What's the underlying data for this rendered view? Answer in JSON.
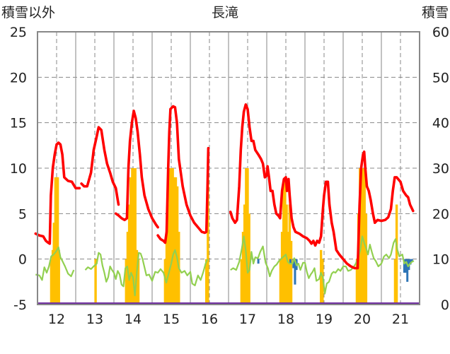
{
  "chart_data": {
    "type": "line",
    "title": "長滝",
    "left_axis_label": "積雪以外",
    "right_axis_label": "積雪",
    "left_ylim": [
      -5,
      25
    ],
    "left_ticks": [
      "25",
      "20",
      "15",
      "10",
      "5",
      "0",
      "-5"
    ],
    "right_ylim": [
      0,
      60
    ],
    "right_ticks": [
      "60",
      "50",
      "40",
      "30",
      "20",
      "10",
      "0"
    ],
    "x_tick_labels": [
      "12",
      "13",
      "14",
      "15",
      "16",
      "17",
      "18",
      "19",
      "20",
      "21"
    ],
    "grid": true,
    "colors": {
      "red_series": "#ff0000",
      "green_series": "#92d050",
      "orange_bars": "#ffc000",
      "blue_bars": "#2e75b6",
      "purple_baseline": "#7030a0",
      "grid": "#888888"
    },
    "red_series_points": [
      [
        11.45,
        2.8
      ],
      [
        11.55,
        2.6
      ],
      [
        11.65,
        2.5
      ],
      [
        11.72,
        2.0
      ],
      [
        11.78,
        1.8
      ],
      [
        11.82,
        1.7
      ],
      [
        11.85,
        7.0
      ],
      [
        11.9,
        10.0
      ],
      [
        11.95,
        11.5
      ],
      [
        12.0,
        12.6
      ],
      [
        12.05,
        12.8
      ],
      [
        12.1,
        12.6
      ],
      [
        12.15,
        11.5
      ],
      [
        12.2,
        9.0
      ],
      [
        12.3,
        8.6
      ],
      [
        12.4,
        8.5
      ],
      [
        12.5,
        7.8
      ],
      [
        12.6,
        7.8
      ],
      [
        null,
        null
      ],
      [
        12.65,
        8.3
      ],
      [
        12.72,
        8.0
      ],
      [
        12.8,
        8.0
      ],
      [
        12.9,
        9.5
      ],
      [
        12.97,
        12.0
      ],
      [
        13.05,
        13.5
      ],
      [
        13.1,
        14.5
      ],
      [
        13.17,
        14.2
      ],
      [
        13.25,
        12.0
      ],
      [
        13.32,
        10.5
      ],
      [
        13.4,
        9.5
      ],
      [
        13.47,
        8.5
      ],
      [
        13.55,
        7.8
      ],
      [
        13.6,
        6.5
      ],
      [
        13.62,
        6.0
      ],
      [
        null,
        null
      ],
      [
        13.55,
        5.0
      ],
      [
        13.62,
        4.8
      ],
      [
        13.7,
        4.5
      ],
      [
        13.78,
        4.3
      ],
      [
        13.84,
        4.5
      ],
      [
        13.88,
        10.0
      ],
      [
        13.92,
        13.0
      ],
      [
        13.97,
        15.0
      ],
      [
        14.02,
        16.3
      ],
      [
        14.07,
        15.5
      ],
      [
        14.12,
        14.0
      ],
      [
        14.18,
        11.5
      ],
      [
        14.23,
        9.0
      ],
      [
        14.3,
        7.0
      ],
      [
        14.4,
        5.5
      ],
      [
        14.5,
        4.5
      ],
      [
        14.6,
        3.8
      ],
      [
        14.65,
        3.5
      ],
      [
        null,
        null
      ],
      [
        14.65,
        2.6
      ],
      [
        14.72,
        2.2
      ],
      [
        14.8,
        2.0
      ],
      [
        14.84,
        1.8
      ],
      [
        14.88,
        3.0
      ],
      [
        14.92,
        10.0
      ],
      [
        14.95,
        14.0
      ],
      [
        14.98,
        16.5
      ],
      [
        15.05,
        16.8
      ],
      [
        15.1,
        16.7
      ],
      [
        15.15,
        15.0
      ],
      [
        15.2,
        11.0
      ],
      [
        15.3,
        8.0
      ],
      [
        15.4,
        6.0
      ],
      [
        15.5,
        4.8
      ],
      [
        15.6,
        4.0
      ],
      [
        15.7,
        3.5
      ],
      [
        15.8,
        3.0
      ],
      [
        15.88,
        2.9
      ],
      [
        15.92,
        3.0
      ],
      [
        15.95,
        8.0
      ],
      [
        15.97,
        12.2
      ],
      [
        null,
        null
      ],
      [
        16.55,
        5.2
      ],
      [
        16.6,
        4.5
      ],
      [
        16.67,
        4.0
      ],
      [
        16.72,
        4.3
      ],
      [
        16.78,
        8.0
      ],
      [
        16.82,
        12.0
      ],
      [
        16.86,
        14.5
      ],
      [
        16.9,
        16.2
      ],
      [
        16.95,
        17.0
      ],
      [
        17.0,
        16.5
      ],
      [
        17.05,
        14.5
      ],
      [
        17.1,
        13.0
      ],
      [
        17.15,
        13.0
      ],
      [
        17.2,
        12.0
      ],
      [
        17.28,
        11.5
      ],
      [
        17.35,
        11.0
      ],
      [
        17.4,
        10.5
      ],
      [
        17.45,
        9.0
      ],
      [
        17.5,
        9.2
      ],
      [
        17.52,
        10.2
      ],
      [
        17.56,
        9.0
      ],
      [
        17.6,
        7.5
      ],
      [
        17.65,
        7.5
      ],
      [
        17.7,
        6.0
      ],
      [
        17.75,
        5.0
      ],
      [
        17.8,
        4.8
      ],
      [
        17.85,
        4.5
      ],
      [
        17.9,
        7.5
      ],
      [
        17.95,
        8.8
      ],
      [
        18.0,
        9.0
      ],
      [
        18.03,
        7.5
      ],
      [
        18.07,
        8.8
      ],
      [
        18.1,
        7.0
      ],
      [
        18.15,
        4.5
      ],
      [
        18.2,
        3.5
      ],
      [
        18.25,
        3.0
      ],
      [
        18.35,
        2.8
      ],
      [
        18.45,
        2.5
      ],
      [
        18.55,
        2.3
      ],
      [
        18.62,
        2.0
      ],
      [
        18.67,
        1.7
      ],
      [
        18.72,
        2.0
      ],
      [
        18.77,
        1.5
      ],
      [
        18.82,
        2.0
      ],
      [
        18.87,
        1.8
      ],
      [
        18.92,
        2.5
      ],
      [
        18.97,
        5.5
      ],
      [
        19.0,
        7.0
      ],
      [
        19.05,
        8.5
      ],
      [
        19.1,
        8.5
      ],
      [
        19.14,
        6.0
      ],
      [
        19.2,
        4.0
      ],
      [
        19.25,
        3.0
      ],
      [
        19.32,
        1.0
      ],
      [
        19.4,
        0.5
      ],
      [
        19.5,
        0.0
      ],
      [
        19.6,
        -0.5
      ],
      [
        19.7,
        -0.8
      ],
      [
        19.8,
        -1.0
      ],
      [
        19.88,
        -1.0
      ],
      [
        19.93,
        6.0
      ],
      [
        19.97,
        10.0
      ],
      [
        20.02,
        11.5
      ],
      [
        20.05,
        11.8
      ],
      [
        20.08,
        10.0
      ],
      [
        20.12,
        8.0
      ],
      [
        20.17,
        7.5
      ],
      [
        20.22,
        6.5
      ],
      [
        20.28,
        5.0
      ],
      [
        20.33,
        4.0
      ],
      [
        20.4,
        4.3
      ],
      [
        20.5,
        4.2
      ],
      [
        20.6,
        4.3
      ],
      [
        20.68,
        4.6
      ],
      [
        20.75,
        5.5
      ],
      [
        20.8,
        7.5
      ],
      [
        20.85,
        9.0
      ],
      [
        20.9,
        9.0
      ],
      [
        21.0,
        8.5
      ],
      [
        21.07,
        7.5
      ],
      [
        21.15,
        7.0
      ],
      [
        21.2,
        6.8
      ],
      [
        21.25,
        6.0
      ],
      [
        21.33,
        5.3
      ]
    ],
    "green_series_points": [
      [
        11.45,
        -1.7
      ],
      [
        11.55,
        -1.8
      ],
      [
        11.62,
        -2.3
      ],
      [
        11.68,
        -0.9
      ],
      [
        11.74,
        -1.5
      ],
      [
        11.8,
        -0.8
      ],
      [
        11.86,
        0.3
      ],
      [
        11.92,
        0.5
      ],
      [
        11.98,
        0.8
      ],
      [
        12.05,
        1.3
      ],
      [
        12.1,
        0.2
      ],
      [
        12.15,
        -0.2
      ],
      [
        12.22,
        -0.8
      ],
      [
        12.3,
        -1.6
      ],
      [
        12.38,
        -1.9
      ],
      [
        12.45,
        -1.2
      ],
      [
        null,
        null
      ],
      [
        12.75,
        -1.2
      ],
      [
        12.82,
        -0.9
      ],
      [
        12.9,
        -1.1
      ],
      [
        12.97,
        -0.8
      ],
      [
        13.05,
        -0.5
      ],
      [
        13.1,
        0.7
      ],
      [
        13.15,
        0.5
      ],
      [
        13.2,
        -0.7
      ],
      [
        13.25,
        -1.5
      ],
      [
        13.3,
        -2.5
      ],
      [
        13.35,
        -2.0
      ],
      [
        13.4,
        -0.8
      ],
      [
        13.45,
        -1.2
      ],
      [
        13.5,
        -1.5
      ],
      [
        13.55,
        -2.2
      ],
      [
        13.6,
        -1.3
      ],
      [
        13.65,
        -1.7
      ],
      [
        13.7,
        -2.8
      ],
      [
        13.75,
        -3.0
      ],
      [
        13.8,
        -1.0
      ],
      [
        13.85,
        -0.8
      ],
      [
        13.9,
        -2.3
      ],
      [
        13.95,
        -1.5
      ],
      [
        14.0,
        -2.0
      ],
      [
        14.05,
        -4.0
      ],
      [
        14.1,
        -1.4
      ],
      [
        14.15,
        0.7
      ],
      [
        14.2,
        0.6
      ],
      [
        14.25,
        0.0
      ],
      [
        14.3,
        -0.9
      ],
      [
        14.35,
        -1.8
      ],
      [
        14.42,
        -1.7
      ],
      [
        14.5,
        -2.4
      ],
      [
        14.58,
        -1.4
      ],
      [
        14.65,
        -1.5
      ],
      [
        14.72,
        -1.1
      ],
      [
        14.8,
        -1.5
      ],
      [
        14.87,
        -2.6
      ],
      [
        14.92,
        -1.8
      ],
      [
        15.0,
        -0.5
      ],
      [
        15.05,
        0.5
      ],
      [
        15.1,
        1.0
      ],
      [
        15.15,
        0.2
      ],
      [
        15.2,
        -1.0
      ],
      [
        15.27,
        -1.5
      ],
      [
        15.35,
        -1.3
      ],
      [
        15.42,
        -1.8
      ],
      [
        15.5,
        -1.4
      ],
      [
        15.55,
        -2.7
      ],
      [
        15.62,
        -2.9
      ],
      [
        15.7,
        -1.8
      ],
      [
        15.77,
        -2.3
      ],
      [
        15.84,
        -1.4
      ],
      [
        15.9,
        -0.5
      ],
      [
        15.95,
        0.0
      ],
      [
        null,
        null
      ],
      [
        16.55,
        -1.2
      ],
      [
        16.62,
        -1.0
      ],
      [
        16.7,
        -1.2
      ],
      [
        16.78,
        -0.3
      ],
      [
        16.85,
        1.2
      ],
      [
        16.9,
        2.5
      ],
      [
        16.95,
        1.0
      ],
      [
        17.0,
        -1.5
      ],
      [
        17.05,
        -1.2
      ],
      [
        17.1,
        0.8
      ],
      [
        17.15,
        -0.5
      ],
      [
        17.2,
        0.2
      ],
      [
        17.27,
        0.1
      ],
      [
        17.33,
        0.8
      ],
      [
        17.4,
        1.4
      ],
      [
        17.47,
        -0.4
      ],
      [
        17.53,
        -1.0
      ],
      [
        17.58,
        -1.9
      ],
      [
        17.63,
        -1.3
      ],
      [
        17.7,
        -0.8
      ],
      [
        17.76,
        -0.6
      ],
      [
        17.82,
        -0.2
      ],
      [
        17.87,
        0.0
      ],
      [
        17.92,
        0.2
      ],
      [
        18.0,
        0.5
      ],
      [
        18.05,
        -0.3
      ],
      [
        18.1,
        -0.5
      ],
      [
        18.17,
        -0.5
      ],
      [
        18.22,
        0.1
      ],
      [
        18.28,
        -0.7
      ],
      [
        18.33,
        -0.5
      ],
      [
        18.38,
        -1.2
      ],
      [
        18.45,
        -0.4
      ],
      [
        18.5,
        -0.4
      ],
      [
        18.55,
        -1.4
      ],
      [
        18.6,
        -2.1
      ],
      [
        18.65,
        -1.7
      ],
      [
        18.7,
        -1.4
      ],
      [
        18.75,
        -1.0
      ],
      [
        18.8,
        -2.4
      ],
      [
        18.87,
        -2.2
      ],
      [
        18.92,
        -1.5
      ],
      [
        18.97,
        -2.0
      ],
      [
        19.02,
        -3.8
      ],
      [
        19.07,
        -2.7
      ],
      [
        19.13,
        -2.5
      ],
      [
        19.2,
        -1.6
      ],
      [
        19.25,
        -1.4
      ],
      [
        19.3,
        -1.5
      ],
      [
        19.37,
        -1.1
      ],
      [
        19.43,
        -1.3
      ],
      [
        19.5,
        -0.8
      ],
      [
        19.57,
        -0.8
      ],
      [
        19.63,
        -1.3
      ],
      [
        19.7,
        -1.2
      ],
      [
        19.77,
        -0.9
      ],
      [
        19.83,
        -0.5
      ],
      [
        19.9,
        0.3
      ],
      [
        19.95,
        1.0
      ],
      [
        20.0,
        2.5
      ],
      [
        20.05,
        1.8
      ],
      [
        20.1,
        1.2
      ],
      [
        20.15,
        0.5
      ],
      [
        20.2,
        1.6
      ],
      [
        20.25,
        0.8
      ],
      [
        20.3,
        0.1
      ],
      [
        20.35,
        -0.2
      ],
      [
        20.42,
        -0.8
      ],
      [
        20.5,
        -0.5
      ],
      [
        20.57,
        0.3
      ],
      [
        20.63,
        0.5
      ],
      [
        20.7,
        0.1
      ],
      [
        20.75,
        0.5
      ],
      [
        20.82,
        1.8
      ],
      [
        20.87,
        2.2
      ],
      [
        20.92,
        1.0
      ],
      [
        20.97,
        0.3
      ],
      [
        21.05,
        0.5
      ],
      [
        21.1,
        -0.5
      ],
      [
        21.15,
        -0.3
      ],
      [
        21.2,
        -0.8
      ],
      [
        21.25,
        -0.5
      ],
      [
        21.3,
        -0.3
      ],
      [
        21.35,
        -0.2
      ]
    ],
    "orange_bars": [
      [
        11.86,
        10
      ],
      [
        11.9,
        12
      ],
      [
        11.93,
        18
      ],
      [
        11.97,
        28
      ],
      [
        12.0,
        28
      ],
      [
        12.03,
        28
      ],
      [
        12.06,
        12
      ],
      [
        13.02,
        10
      ],
      [
        13.82,
        10
      ],
      [
        13.86,
        16
      ],
      [
        13.9,
        22
      ],
      [
        13.94,
        28
      ],
      [
        13.98,
        30
      ],
      [
        14.02,
        30
      ],
      [
        14.06,
        30
      ],
      [
        14.1,
        12
      ],
      [
        14.14,
        10
      ],
      [
        14.84,
        10
      ],
      [
        14.88,
        16
      ],
      [
        14.92,
        22
      ],
      [
        14.96,
        30
      ],
      [
        15.0,
        30
      ],
      [
        15.04,
        30
      ],
      [
        15.08,
        28
      ],
      [
        15.12,
        28
      ],
      [
        15.16,
        26
      ],
      [
        15.2,
        16
      ],
      [
        15.92,
        10
      ],
      [
        15.96,
        30
      ],
      [
        16.84,
        10
      ],
      [
        16.88,
        16
      ],
      [
        16.92,
        22
      ],
      [
        16.96,
        30
      ],
      [
        17.0,
        30
      ],
      [
        17.04,
        20
      ],
      [
        17.86,
        10
      ],
      [
        17.9,
        16
      ],
      [
        17.94,
        26
      ],
      [
        17.98,
        28
      ],
      [
        18.02,
        22
      ],
      [
        18.06,
        16
      ],
      [
        18.1,
        22
      ],
      [
        18.14,
        14
      ],
      [
        18.92,
        12
      ],
      [
        18.96,
        10
      ],
      [
        19.86,
        10
      ],
      [
        19.9,
        20
      ],
      [
        19.94,
        30
      ],
      [
        19.98,
        30
      ],
      [
        20.02,
        30
      ],
      [
        20.06,
        30
      ],
      [
        20.1,
        20
      ],
      [
        20.86,
        10
      ],
      [
        20.9,
        22
      ]
    ],
    "blue_bars": [
      [
        17.28,
        -0.5
      ],
      [
        18.12,
        -0.5
      ],
      [
        18.2,
        -1.0
      ],
      [
        18.24,
        -2.8
      ],
      [
        18.28,
        -1.2
      ],
      [
        21.1,
        -1.5
      ],
      [
        21.14,
        -1.5
      ],
      [
        21.18,
        -2.5
      ],
      [
        21.22,
        -1.2
      ],
      [
        21.26,
        -0.6
      ],
      [
        21.3,
        -0.3
      ]
    ]
  }
}
